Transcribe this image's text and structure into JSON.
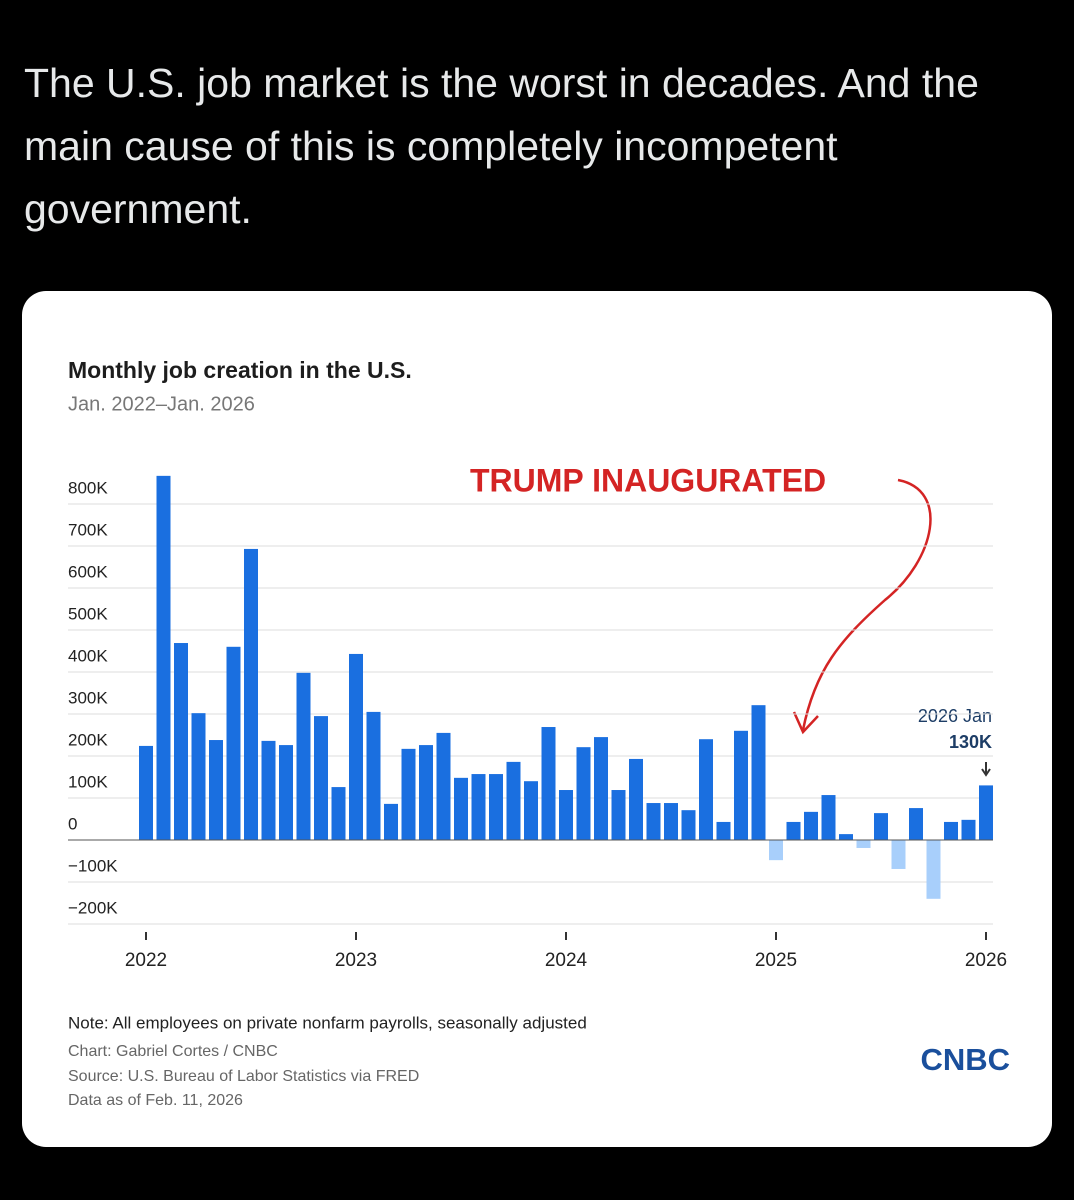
{
  "post": {
    "text": "The U.S. job market is the worst in decades. And the main cause of this is completely incompetent government."
  },
  "chart_data": {
    "type": "bar",
    "title": "Monthly job creation in the U.S.",
    "subtitle": "Jan. 2022–Jan. 2026",
    "categories": [
      "2022",
      null,
      null,
      null,
      null,
      null,
      null,
      null,
      null,
      null,
      null,
      null,
      "2023",
      null,
      null,
      null,
      null,
      null,
      null,
      null,
      null,
      null,
      null,
      null,
      "2024",
      null,
      null,
      null,
      null,
      null,
      null,
      null,
      null,
      null,
      null,
      null,
      "2025",
      null,
      null,
      null,
      null,
      null,
      null,
      null,
      null,
      null,
      null,
      null,
      "2026"
    ],
    "values": [
      224000,
      867000,
      469000,
      302000,
      238000,
      460000,
      693000,
      236000,
      226000,
      398000,
      295000,
      126000,
      443000,
      305000,
      86000,
      217000,
      226000,
      255000,
      148000,
      157000,
      157000,
      186000,
      140000,
      269000,
      119000,
      221000,
      245000,
      119000,
      193000,
      88000,
      88000,
      71000,
      240000,
      43000,
      260000,
      321000,
      -48000,
      43000,
      67000,
      107000,
      14000,
      -19000,
      64000,
      -69000,
      76000,
      -140000,
      43000,
      48000,
      130000
    ],
    "value_labels": [
      null,
      null,
      null,
      null,
      null,
      null,
      null,
      null,
      null,
      null,
      null,
      null,
      null,
      null,
      null,
      null,
      null,
      null,
      null,
      null,
      null,
      null,
      null,
      null,
      null,
      null,
      null,
      null,
      null,
      null,
      null,
      null,
      null,
      null,
      null,
      null,
      null,
      null,
      null,
      null,
      null,
      null,
      null,
      null,
      null,
      null,
      null,
      null,
      "130K"
    ],
    "callout_label": "2026 Jan",
    "annotation": "TRUMP INAUGURATED",
    "color": "#1a6fe0",
    "negative_color": "#a8cffb",
    "ylim": [
      -200000,
      900000
    ],
    "yticks": [
      {
        "value": -200000,
        "label": "−200K"
      },
      {
        "value": -100000,
        "label": "−100K"
      },
      0,
      {
        "value": 100000,
        "label": "100K"
      },
      {
        "value": 200000,
        "label": "200K"
      },
      {
        "value": 300000,
        "label": "300K"
      },
      {
        "value": 400000,
        "label": "400K"
      },
      {
        "value": 500000,
        "label": "500K"
      },
      {
        "value": 600000,
        "label": "600K"
      },
      {
        "value": 700000,
        "label": "700K"
      },
      {
        "value": 800000,
        "label": "800K"
      }
    ],
    "grid": true,
    "note": "Note: All employees on private nonfarm payrolls, seasonally adjusted",
    "credit": "Chart: Gabriel Cortes / CNBC",
    "source": "Source: U.S. Bureau of Labor Statistics via FRED",
    "data_date": "Data as of Feb. 11, 2026",
    "logo": "CNBC"
  }
}
